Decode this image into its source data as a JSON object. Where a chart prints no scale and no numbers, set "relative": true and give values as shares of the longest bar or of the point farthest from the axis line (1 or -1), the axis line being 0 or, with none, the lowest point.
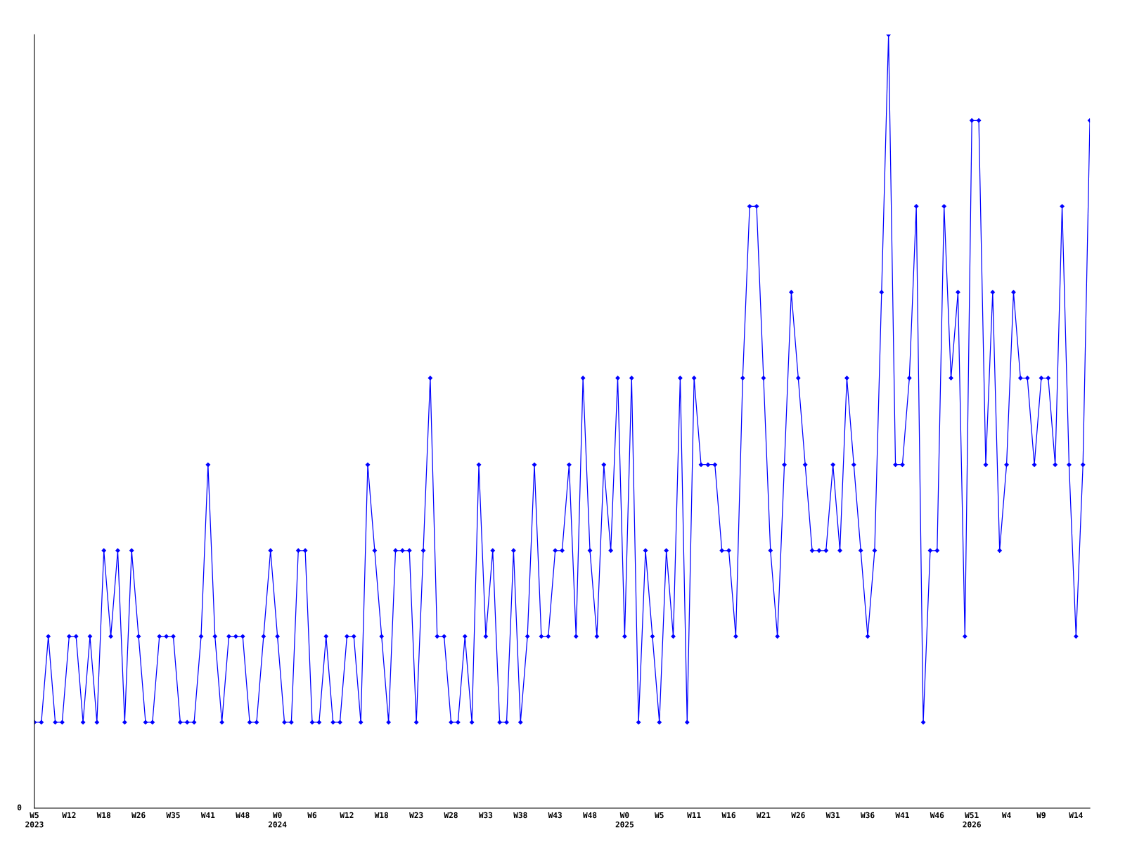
{
  "chart_data": {
    "type": "line",
    "relative": true,
    "color": "#0000ff",
    "marker": "diamond",
    "line_style": "solid",
    "grid": false,
    "legend": false,
    "annotations": [
      "0"
    ],
    "categories": [
      "W5\n2023",
      null,
      null,
      null,
      null,
      "W12",
      null,
      null,
      null,
      null,
      "W18",
      null,
      null,
      null,
      null,
      "W26",
      null,
      null,
      null,
      null,
      "W35",
      null,
      null,
      null,
      null,
      "W41",
      null,
      null,
      null,
      null,
      "W48",
      null,
      null,
      null,
      null,
      "W0\n2024",
      null,
      null,
      null,
      null,
      "W6",
      null,
      null,
      null,
      null,
      "W12",
      null,
      null,
      null,
      null,
      "W18",
      null,
      null,
      null,
      null,
      "W23",
      null,
      null,
      null,
      null,
      "W28",
      null,
      null,
      null,
      null,
      "W33",
      null,
      null,
      null,
      null,
      "W38",
      null,
      null,
      null,
      null,
      "W43",
      null,
      null,
      null,
      null,
      "W48",
      null,
      null,
      null,
      null,
      "W0\n2025",
      null,
      null,
      null,
      null,
      "W5",
      null,
      null,
      null,
      null,
      "W11",
      null,
      null,
      null,
      null,
      "W16",
      null,
      null,
      null,
      null,
      "W21",
      null,
      null,
      null,
      null,
      "W26",
      null,
      null,
      null,
      null,
      "W31",
      null,
      null,
      null,
      null,
      "W36",
      null,
      null,
      null,
      null,
      "W41",
      null,
      null,
      null,
      null,
      "W46",
      null,
      null,
      null,
      null,
      "W51\n2026",
      null,
      null,
      null,
      null,
      "W4",
      null,
      null,
      null,
      null,
      "W9",
      null,
      null,
      null,
      null,
      "W14",
      null,
      null
    ],
    "values": [
      0.111,
      0.111,
      0.222,
      0.111,
      0.111,
      0.222,
      0.222,
      0.111,
      0.222,
      0.111,
      0.333,
      0.222,
      0.333,
      0.111,
      0.333,
      0.222,
      0.111,
      0.111,
      0.222,
      0.222,
      0.222,
      0.111,
      0.111,
      0.111,
      0.222,
      0.444,
      0.222,
      0.111,
      0.222,
      0.222,
      0.222,
      0.111,
      0.111,
      0.222,
      0.333,
      0.222,
      0.111,
      0.111,
      0.333,
      0.333,
      0.111,
      0.111,
      0.222,
      0.111,
      0.111,
      0.222,
      0.222,
      0.111,
      0.444,
      0.333,
      0.222,
      0.111,
      0.333,
      0.333,
      0.333,
      0.111,
      0.333,
      0.556,
      0.222,
      0.222,
      0.111,
      0.111,
      0.222,
      0.111,
      0.444,
      0.222,
      0.333,
      0.111,
      0.111,
      0.333,
      0.111,
      0.222,
      0.444,
      0.222,
      0.222,
      0.333,
      0.333,
      0.444,
      0.222,
      0.556,
      0.333,
      0.222,
      0.444,
      0.333,
      0.556,
      0.222,
      0.556,
      0.111,
      0.333,
      0.222,
      0.111,
      0.333,
      0.222,
      0.556,
      0.111,
      0.556,
      0.444,
      0.444,
      0.444,
      0.333,
      0.333,
      0.222,
      0.556,
      0.778,
      0.778,
      0.556,
      0.333,
      0.222,
      0.444,
      0.667,
      0.556,
      0.444,
      0.333,
      0.333,
      0.333,
      0.444,
      0.333,
      0.556,
      0.444,
      0.333,
      0.222,
      0.333,
      0.667,
      1,
      0.444,
      0.444,
      0.556,
      0.778,
      0.111,
      0.333,
      0.333,
      0.778,
      0.556,
      0.667,
      0.222,
      0.889,
      0.889,
      0.444,
      0.667,
      0.333,
      0.444,
      0.667,
      0.556,
      0.556,
      0.444,
      0.556,
      0.556,
      0.444,
      0.778,
      0.444,
      0.222,
      0.444,
      0.889
    ]
  }
}
